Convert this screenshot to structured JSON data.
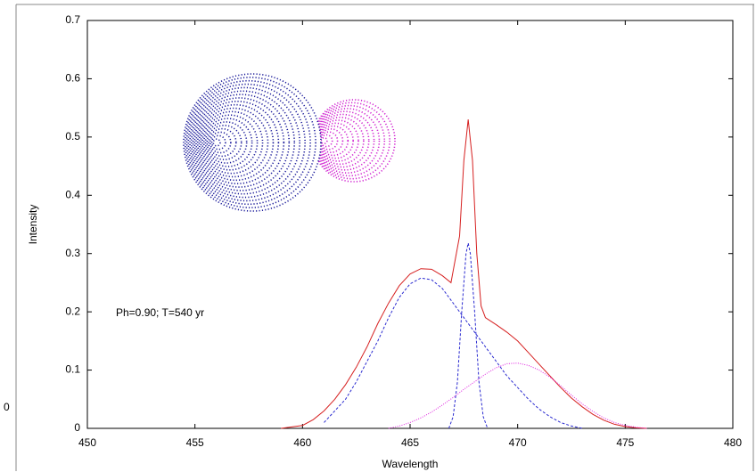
{
  "chart_data": {
    "type": "line",
    "xlabel": "Wavelength",
    "ylabel": "Intensity",
    "annotation": "Ph=0.90; T=540 yr",
    "edge_text": "0",
    "xlim": [
      450,
      480
    ],
    "xticks": [
      450,
      455,
      460,
      465,
      470,
      475,
      480
    ],
    "ylim": [
      0,
      0.7
    ],
    "yticks": [
      0,
      0.1,
      0.2,
      0.3,
      0.4,
      0.5,
      0.6,
      0.7
    ],
    "series": [
      {
        "color": "#d62020",
        "style": "solid",
        "x": [
          459,
          460,
          460.5,
          461,
          461.5,
          462,
          462.5,
          463,
          463.5,
          464,
          464.5,
          465,
          465.5,
          466,
          466.5,
          466.9,
          467.3,
          467.5,
          467.7,
          467.9,
          468.1,
          468.3,
          468.5,
          469,
          469.5,
          470,
          470.5,
          471,
          471.5,
          472,
          472.5,
          473,
          473.5,
          474,
          474.5,
          475,
          475.5,
          476
        ],
        "values": [
          0,
          0.005,
          0.015,
          0.03,
          0.05,
          0.075,
          0.105,
          0.14,
          0.18,
          0.215,
          0.245,
          0.265,
          0.274,
          0.273,
          0.262,
          0.25,
          0.33,
          0.46,
          0.53,
          0.46,
          0.3,
          0.21,
          0.19,
          0.178,
          0.165,
          0.15,
          0.13,
          0.11,
          0.09,
          0.07,
          0.052,
          0.037,
          0.024,
          0.014,
          0.007,
          0.003,
          0.001,
          0
        ]
      },
      {
        "color": "#2a2ad0",
        "style": "dashed",
        "x": [
          461,
          461.5,
          462,
          462.5,
          463,
          463.5,
          464,
          464.5,
          465,
          465.5,
          466,
          466.5,
          467,
          467.5,
          468,
          468.5,
          469,
          469.5,
          470,
          470.5,
          471,
          471.5,
          472,
          472.5,
          473
        ],
        "values": [
          0.01,
          0.03,
          0.05,
          0.08,
          0.115,
          0.15,
          0.19,
          0.225,
          0.248,
          0.258,
          0.255,
          0.24,
          0.215,
          0.19,
          0.165,
          0.14,
          0.115,
          0.09,
          0.07,
          0.05,
          0.033,
          0.02,
          0.01,
          0.004,
          0
        ]
      },
      {
        "color": "#2a2ad0",
        "style": "dashed",
        "x": [
          466.8,
          467.0,
          467.2,
          467.4,
          467.6,
          467.7,
          467.8,
          468.0,
          468.2,
          468.4,
          468.6
        ],
        "values": [
          0,
          0.02,
          0.08,
          0.2,
          0.3,
          0.318,
          0.3,
          0.2,
          0.08,
          0.02,
          0
        ]
      },
      {
        "color": "#e020e0",
        "style": "dotted",
        "x": [
          464,
          464.5,
          465,
          465.5,
          466,
          466.5,
          467,
          467.5,
          468,
          468.5,
          469,
          469.5,
          470,
          470.5,
          471,
          471.5,
          472,
          472.5,
          473,
          473.5,
          474,
          474.5,
          475,
          475.5,
          476
        ],
        "values": [
          0,
          0.004,
          0.01,
          0.018,
          0.028,
          0.04,
          0.053,
          0.067,
          0.08,
          0.093,
          0.104,
          0.111,
          0.112,
          0.108,
          0.1,
          0.088,
          0.073,
          0.057,
          0.042,
          0.029,
          0.018,
          0.01,
          0.005,
          0.002,
          0
        ]
      }
    ]
  }
}
